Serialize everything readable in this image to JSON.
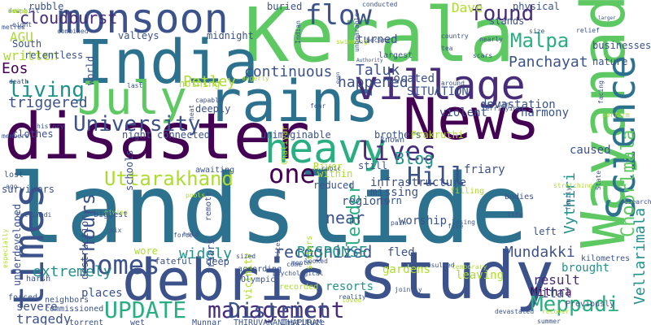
{
  "word_cloud": {
    "background": "#ffffff",
    "palette": [
      "#440154",
      "#472c7a",
      "#3b528b",
      "#2c728e",
      "#21918c",
      "#28ae80",
      "#5ec962",
      "#addc30",
      "#fde725"
    ],
    "words": [
      {
        "text": "landslide",
        "color": "#2c728e",
        "vertical": false
      },
      {
        "text": "Kerala",
        "color": "#5ec962",
        "vertical": false
      },
      {
        "text": "India",
        "color": "#2c728e",
        "vertical": false
      },
      {
        "text": "Wayanad",
        "color": "#5ec962",
        "vertical": true
      },
      {
        "text": "disaster",
        "color": "#440154",
        "vertical": false
      },
      {
        "text": "study",
        "color": "#3b528b",
        "vertical": false
      },
      {
        "text": "debris",
        "color": "#3b528b",
        "vertical": false
      },
      {
        "text": "News",
        "color": "#440154",
        "vertical": false
      },
      {
        "text": "rains",
        "color": "#2c728e",
        "vertical": false
      },
      {
        "text": "village",
        "color": "#472c7a",
        "vertical": false
      },
      {
        "text": "July",
        "color": "#5ec962",
        "vertical": false
      },
      {
        "text": "monsoon",
        "color": "#3b528b",
        "vertical": false
      },
      {
        "text": "heavy",
        "color": "#28ae80",
        "vertical": false
      },
      {
        "text": "Science",
        "color": "#2c728e",
        "vertical": true
      },
      {
        "text": "times",
        "color": "#3b528b",
        "vertical": true
      },
      {
        "text": "UPDATE",
        "color": "#28ae80",
        "vertical": false
      },
      {
        "text": "management",
        "color": "#472c7a",
        "vertical": false
      },
      {
        "text": "homes",
        "color": "#3b528b",
        "vertical": false
      },
      {
        "text": "Uttarakhand",
        "color": "#addc30",
        "vertical": false
      },
      {
        "text": "District",
        "color": "#3b528b",
        "vertical": false
      },
      {
        "text": "Meppadi",
        "color": "#28ae80",
        "vertical": false
      },
      {
        "text": "lives",
        "color": "#472c7a",
        "vertical": false
      },
      {
        "text": "one",
        "color": "#440154",
        "vertical": false
      },
      {
        "text": "Hill",
        "color": "#3b528b",
        "vertical": false
      },
      {
        "text": "found",
        "color": "#472c7a",
        "vertical": false
      },
      {
        "text": "flow",
        "color": "#3b528b",
        "vertical": false
      },
      {
        "text": "Malpa",
        "color": "#28ae80",
        "vertical": false
      },
      {
        "text": "living",
        "color": "#21918c",
        "vertical": false
      },
      {
        "text": "University",
        "color": "#3b528b",
        "vertical": false
      },
      {
        "text": "hours",
        "color": "#3b528b",
        "vertical": true
      },
      {
        "text": "Choorlmala",
        "color": "#5ec962",
        "vertical": true
      },
      {
        "text": "Vellarimala",
        "color": "#21918c",
        "vertical": true
      },
      {
        "text": "recognized",
        "color": "#3b528b",
        "vertical": false
      },
      {
        "text": "RESPONSE",
        "color": "#21918c",
        "vertical": false
      },
      {
        "text": "Mundakki",
        "color": "#3b528b",
        "vertical": false
      },
      {
        "text": "leader",
        "color": "#28ae80",
        "vertical": true
      },
      {
        "text": "Vythiri",
        "color": "#21918c",
        "vertical": true
      },
      {
        "text": "Blog",
        "color": "#21918c",
        "vertical": false
      },
      {
        "text": "near",
        "color": "#3b528b",
        "vertical": false
      },
      {
        "text": "continuous",
        "color": "#3b528b",
        "vertical": false
      },
      {
        "text": "happened",
        "color": "#3b528b",
        "vertical": false
      },
      {
        "text": "Taluk",
        "color": "#3b528b",
        "vertical": false
      },
      {
        "text": "Panchayat",
        "color": "#3b528b",
        "vertical": false
      },
      {
        "text": "Petley",
        "color": "#addc30",
        "vertical": false
      },
      {
        "text": "Dave",
        "color": "#addc30",
        "vertical": false
      },
      {
        "text": "cloudburst",
        "color": "#472c7a",
        "vertical": false
      },
      {
        "text": "AGU",
        "color": "#addc30",
        "vertical": false
      },
      {
        "text": "written",
        "color": "#addc30",
        "vertical": false
      },
      {
        "text": "Eos",
        "color": "#440154",
        "vertical": false
      },
      {
        "text": "triggered",
        "color": "#3b528b",
        "vertical": false
      },
      {
        "text": "extremely",
        "color": "#21918c",
        "vertical": false
      },
      {
        "text": "widely",
        "color": "#21918c",
        "vertical": false
      },
      {
        "text": "result",
        "color": "#472c7a",
        "vertical": false
      },
      {
        "text": "brought",
        "color": "#21918c",
        "vertical": false
      },
      {
        "text": "Mithra",
        "color": "#440154",
        "vertical": false
      },
      {
        "text": "vital",
        "color": "#3b528b",
        "vertical": false
      },
      {
        "text": "tragedy",
        "color": "#3b528b",
        "vertical": false
      },
      {
        "text": "severe",
        "color": "#3b528b",
        "vertical": false
      },
      {
        "text": "places",
        "color": "#3b528b",
        "vertical": false
      },
      {
        "text": "resorts",
        "color": "#21918c",
        "vertical": false
      },
      {
        "text": "fled",
        "color": "#3b528b",
        "vertical": false
      },
      {
        "text": "leaving",
        "color": "#addc30",
        "vertical": false
      },
      {
        "text": "gardens",
        "color": "#addc30",
        "vertical": false
      },
      {
        "text": "worship",
        "color": "#3b528b",
        "vertical": false
      },
      {
        "text": "regions",
        "color": "#3b528b",
        "vertical": false
      },
      {
        "text": "infrastructure",
        "color": "#3b528b",
        "vertical": false
      },
      {
        "text": "missing",
        "color": "#3b528b",
        "vertical": false
      },
      {
        "text": "friary",
        "color": "#3b528b",
        "vertical": false
      },
      {
        "text": "caused",
        "color": "#3b528b",
        "vertical": false
      },
      {
        "text": "harmony",
        "color": "#3b528b",
        "vertical": false
      },
      {
        "text": "violent",
        "color": "#3b528b",
        "vertical": false
      },
      {
        "text": "devastation",
        "color": "#3b528b",
        "vertical": false
      },
      {
        "text": "SITUATION",
        "color": "#3b528b",
        "vertical": false
      },
      {
        "text": "located",
        "color": "#3b528b",
        "vertical": false
      },
      {
        "text": "turned",
        "color": "#3b528b",
        "vertical": false
      },
      {
        "text": "buried",
        "color": "#3b528b",
        "vertical": false
      },
      {
        "text": "businesses",
        "color": "#3b528b",
        "vertical": false
      },
      {
        "text": "nature",
        "color": "#3b528b",
        "vertical": false
      },
      {
        "text": "physical",
        "color": "#3b528b",
        "vertical": false
      },
      {
        "text": "stands",
        "color": "#3b528b",
        "vertical": false
      },
      {
        "text": "South",
        "color": "#3b528b",
        "vertical": false
      },
      {
        "text": "relentless",
        "color": "#3b528b",
        "vertical": false
      },
      {
        "text": "rubble",
        "color": "#3b528b",
        "vertical": false
      },
      {
        "text": "valleys",
        "color": "#3b528b",
        "vertical": false
      },
      {
        "text": "midnight",
        "color": "#3b528b",
        "vertical": false
      },
      {
        "text": "nothing",
        "color": "#addc30",
        "vertical": false
      },
      {
        "text": "deeply",
        "color": "#3b528b",
        "vertical": false
      },
      {
        "text": "night",
        "color": "#3b528b",
        "vertical": false
      },
      {
        "text": "connected",
        "color": "#3b528b",
        "vertical": false
      },
      {
        "text": "unimaginable",
        "color": "#3b528b",
        "vertical": false
      },
      {
        "text": "brothers",
        "color": "#3b528b",
        "vertical": false
      },
      {
        "text": "Prakruthi",
        "color": "#addc30",
        "vertical": false
      },
      {
        "text": "world",
        "color": "#3b528b",
        "vertical": true
      },
      {
        "text": "clothes",
        "color": "#3b528b",
        "vertical": false
      },
      {
        "text": "schools",
        "color": "#3b528b",
        "vertical": true
      },
      {
        "text": "lost",
        "color": "#3b528b",
        "vertical": false
      },
      {
        "text": "survivors",
        "color": "#3b528b",
        "vertical": false
      },
      {
        "text": "underdeveloped",
        "color": "#3b528b",
        "vertical": true
      },
      {
        "text": "reduced",
        "color": "#3b528b",
        "vertical": false
      },
      {
        "text": "within",
        "color": "#addc30",
        "vertical": false
      },
      {
        "text": "River",
        "color": "#addc30",
        "vertical": false
      },
      {
        "text": "still",
        "color": "#3b528b",
        "vertical": false
      },
      {
        "text": "torn",
        "color": "#3b528b",
        "vertical": false
      },
      {
        "text": "left",
        "color": "#3b528b",
        "vertical": false
      },
      {
        "text": "wore",
        "color": "#addc30",
        "vertical": false
      },
      {
        "text": "friars",
        "color": "#3b528b",
        "vertical": true
      },
      {
        "text": "fateful",
        "color": "#3b528b",
        "vertical": false
      },
      {
        "text": "destruction",
        "color": "#3b528b",
        "vertical": true
      },
      {
        "text": "deep",
        "color": "#3b528b",
        "vertical": false
      },
      {
        "text": "vicinity",
        "color": "#addc30",
        "vertical": true
      },
      {
        "text": "sisters",
        "color": "#addc30",
        "vertical": true
      },
      {
        "text": "Chaliyar",
        "color": "#addc30",
        "vertical": true
      },
      {
        "text": "known",
        "color": "#3b528b",
        "vertical": false
      },
      {
        "text": "largest",
        "color": "#3b528b",
        "vertical": false
      },
      {
        "text": "remote",
        "color": "#3b528b",
        "vertical": true
      },
      {
        "text": "wet",
        "color": "#3b528b",
        "vertical": false
      },
      {
        "text": "Munnar",
        "color": "#3b528b",
        "vertical": false
      },
      {
        "text": "THIRUVANANTHAPURAM",
        "color": "#3b528b",
        "vertical": false
      },
      {
        "text": "Institute",
        "color": "#3b528b",
        "vertical": false
      },
      {
        "text": "torrent",
        "color": "#3b528b",
        "vertical": false
      },
      {
        "text": "neighbors",
        "color": "#3b528b",
        "vertical": false
      },
      {
        "text": "commissioned",
        "color": "#3b528b",
        "vertical": false
      },
      {
        "text": "forced",
        "color": "#3b528b",
        "vertical": false
      },
      {
        "text": "harsh",
        "color": "#3b528b",
        "vertical": false
      },
      {
        "text": "recorded",
        "color": "#addc30",
        "vertical": false
      },
      {
        "text": "psychological",
        "color": "#3b528b",
        "vertical": false
      },
      {
        "text": "Olympic",
        "color": "#3b528b",
        "vertical": false
      },
      {
        "text": "according",
        "color": "#3b528b",
        "vertical": false
      },
      {
        "text": "awaiting",
        "color": "#3b528b",
        "vertical": false
      },
      {
        "text": "filling",
        "color": "#addc30",
        "vertical": false
      },
      {
        "text": "bodies",
        "color": "#3b528b",
        "vertical": false
      },
      {
        "text": "kilometres",
        "color": "#3b528b",
        "vertical": false
      },
      {
        "text": "Previously",
        "color": "#3b528b",
        "vertical": false
      },
      {
        "text": "summer",
        "color": "#3b528b",
        "vertical": false
      },
      {
        "text": "recover",
        "color": "#addc30",
        "vertical": false
      },
      {
        "text": "devastated",
        "color": "#3b528b",
        "vertical": false
      },
      {
        "text": "temporary",
        "color": "#addc30",
        "vertical": false
      },
      {
        "text": "resulted",
        "color": "#3b528b",
        "vertical": false
      },
      {
        "text": "jointly",
        "color": "#3b528b",
        "vertical": false
      },
      {
        "text": "loved",
        "color": "#addc30",
        "vertical": false
      },
      {
        "text": "six",
        "color": "#3b528b",
        "vertical": false
      },
      {
        "text": "giving",
        "color": "#addc30",
        "vertical": false
      },
      {
        "text": "Pettimudi",
        "color": "#3b528b",
        "vertical": false
      },
      {
        "text": "biggest",
        "color": "#3b528b",
        "vertical": false
      },
      {
        "text": "pools",
        "color": "#addc30",
        "vertical": false
      },
      {
        "text": "heat",
        "color": "#3b528b",
        "vertical": true
      },
      {
        "text": "capable",
        "color": "#3b528b",
        "vertical": false
      },
      {
        "text": "death",
        "color": "#3b528b",
        "vertical": false
      },
      {
        "text": "members",
        "color": "#3b528b",
        "vertical": false
      },
      {
        "text": "history",
        "color": "#3b528b",
        "vertical": false
      },
      {
        "text": "nearly",
        "color": "#3b528b",
        "vertical": false
      },
      {
        "text": "country",
        "color": "#3b528b",
        "vertical": false
      },
      {
        "text": "tea",
        "color": "#3b528b",
        "vertical": false
      },
      {
        "text": "scars",
        "color": "#3b528b",
        "vertical": false
      },
      {
        "text": "relief",
        "color": "#3b528b",
        "vertical": false
      },
      {
        "text": "larger",
        "color": "#3b528b",
        "vertical": false
      },
      {
        "text": "facing",
        "color": "#3b528b",
        "vertical": true
      },
      {
        "text": "perform",
        "color": "#addc30",
        "vertical": false
      },
      {
        "text": "around",
        "color": "#3b528b",
        "vertical": false
      },
      {
        "text": "terrifying",
        "color": "#3b528b",
        "vertical": false
      },
      {
        "text": "million",
        "color": "#3b528b",
        "vertical": false
      },
      {
        "text": "fear",
        "color": "#3b528b",
        "vertical": false
      },
      {
        "text": "last",
        "color": "#3b528b",
        "vertical": false
      },
      {
        "text": "Authority",
        "color": "#3b528b",
        "vertical": false
      },
      {
        "text": "became",
        "color": "#3b528b",
        "vertical": false
      },
      {
        "text": "combined",
        "color": "#3b528b",
        "vertical": false
      },
      {
        "text": "metres",
        "color": "#3b528b",
        "vertical": false
      },
      {
        "text": "swimming",
        "color": "#addc30",
        "vertical": false
      },
      {
        "text": "conducted",
        "color": "#3b528b",
        "vertical": false
      },
      {
        "text": "eight",
        "color": "#3b528b",
        "vertical": false
      },
      {
        "text": "family",
        "color": "#3b528b",
        "vertical": true
      },
      {
        "text": "researchers",
        "color": "#3b528b",
        "vertical": false
      },
      {
        "text": "State",
        "color": "#3b528b",
        "vertical": true
      },
      {
        "text": "life",
        "color": "#3b528b",
        "vertical": false
      },
      {
        "text": "losing",
        "color": "#3b528b",
        "vertical": false
      },
      {
        "text": "pain",
        "color": "#3b528b",
        "vertical": false
      },
      {
        "text": "cubic",
        "color": "#3b528b",
        "vertical": false
      },
      {
        "text": "five",
        "color": "#3b528b",
        "vertical": false
      },
      {
        "text": "eagerly",
        "color": "#addc30",
        "vertical": false
      },
      {
        "text": "force",
        "color": "#3b528b",
        "vertical": false
      },
      {
        "text": "held",
        "color": "#3b528b",
        "vertical": false
      },
      {
        "text": "especially",
        "color": "#addc30",
        "vertical": true
      },
      {
        "text": "Indian",
        "color": "#3b528b",
        "vertical": true
      },
      {
        "text": "unbearable",
        "color": "#3b528b",
        "vertical": true
      },
      {
        "text": "even",
        "color": "#3b528b",
        "vertical": true
      },
      {
        "text": "size",
        "color": "#3b528b",
        "vertical": false
      },
      {
        "text": "stretching",
        "color": "#addc30",
        "vertical": false
      },
      {
        "text": "month",
        "color": "#3b528b",
        "vertical": false
      },
      {
        "text": "rites",
        "color": "#3b528b",
        "vertical": true
      },
      {
        "text": "come",
        "color": "#3b528b",
        "vertical": false
      },
      {
        "text": "looked",
        "color": "#3b528b",
        "vertical": false
      },
      {
        "text": "reality",
        "color": "#3b528b",
        "vertical": false
      },
      {
        "text": "sized",
        "color": "#3b528b",
        "vertical": false
      },
      {
        "text": "ago",
        "color": "#3b528b",
        "vertical": false
      },
      {
        "text": "saw",
        "color": "#3b528b",
        "vertical": false
      },
      {
        "text": "downhill",
        "color": "#3b528b",
        "vertical": false
      },
      {
        "text": "camps",
        "color": "#addc30",
        "vertical": false
      },
      {
        "text": "bring",
        "color": "#addc30",
        "vertical": false
      }
    ]
  }
}
